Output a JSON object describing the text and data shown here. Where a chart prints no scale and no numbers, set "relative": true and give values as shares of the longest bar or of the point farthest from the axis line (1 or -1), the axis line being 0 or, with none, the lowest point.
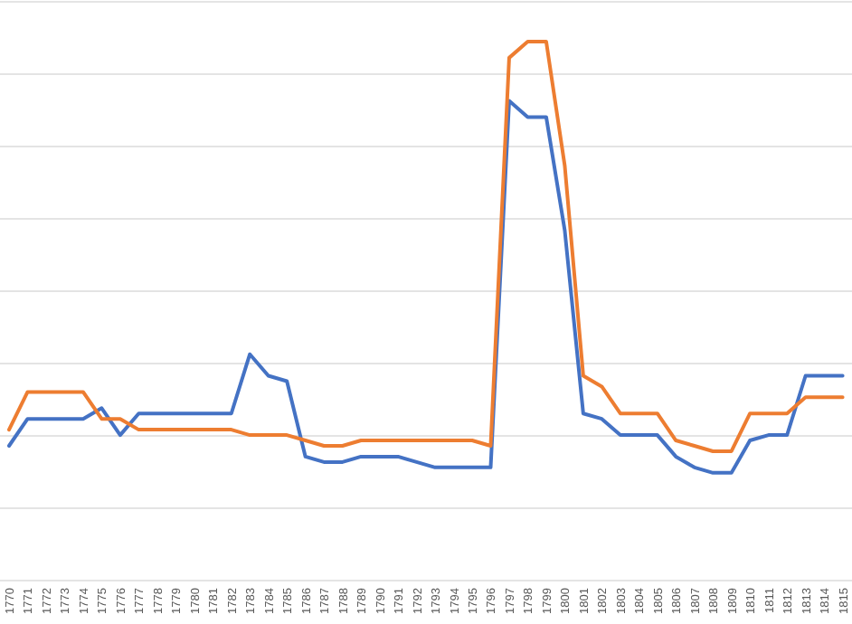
{
  "chart_data": {
    "type": "line",
    "relative": true,
    "grid": true,
    "categories": [
      "1770",
      "1771",
      "1772",
      "1773",
      "1774",
      "1775",
      "1776",
      "1777",
      "1778",
      "1779",
      "1780",
      "1781",
      "1782",
      "1783",
      "1784",
      "1785",
      "1786",
      "1787",
      "1788",
      "1789",
      "1790",
      "1791",
      "1792",
      "1793",
      "1794",
      "1795",
      "1796",
      "1797",
      "1798",
      "1799",
      "1800",
      "1801",
      "1802",
      "1803",
      "1804",
      "1805",
      "1806",
      "1807",
      "1808",
      "1809",
      "1810",
      "1811",
      "1812",
      "1813",
      "1814",
      "1815"
    ],
    "series": [
      {
        "color": "#4472c4",
        "values": [
          0.25,
          0.3,
          0.3,
          0.3,
          0.3,
          0.32,
          0.27,
          0.31,
          0.31,
          0.31,
          0.31,
          0.31,
          0.31,
          0.42,
          0.38,
          0.37,
          0.23,
          0.22,
          0.22,
          0.23,
          0.23,
          0.23,
          0.22,
          0.21,
          0.21,
          0.21,
          0.21,
          0.89,
          0.86,
          0.86,
          0.65,
          0.31,
          0.3,
          0.27,
          0.27,
          0.27,
          0.23,
          0.21,
          0.2,
          0.2,
          0.26,
          0.27,
          0.27,
          0.38,
          0.38,
          0.38
        ]
      },
      {
        "color": "#ed7d31",
        "values": [
          0.28,
          0.35,
          0.35,
          0.35,
          0.35,
          0.3,
          0.3,
          0.28,
          0.28,
          0.28,
          0.28,
          0.28,
          0.28,
          0.27,
          0.27,
          0.27,
          0.26,
          0.25,
          0.25,
          0.26,
          0.26,
          0.26,
          0.26,
          0.26,
          0.26,
          0.26,
          0.25,
          0.97,
          1,
          1,
          0.77,
          0.38,
          0.36,
          0.31,
          0.31,
          0.31,
          0.26,
          0.25,
          0.24,
          0.24,
          0.31,
          0.31,
          0.31,
          0.34,
          0.34,
          0.34
        ]
      }
    ]
  }
}
